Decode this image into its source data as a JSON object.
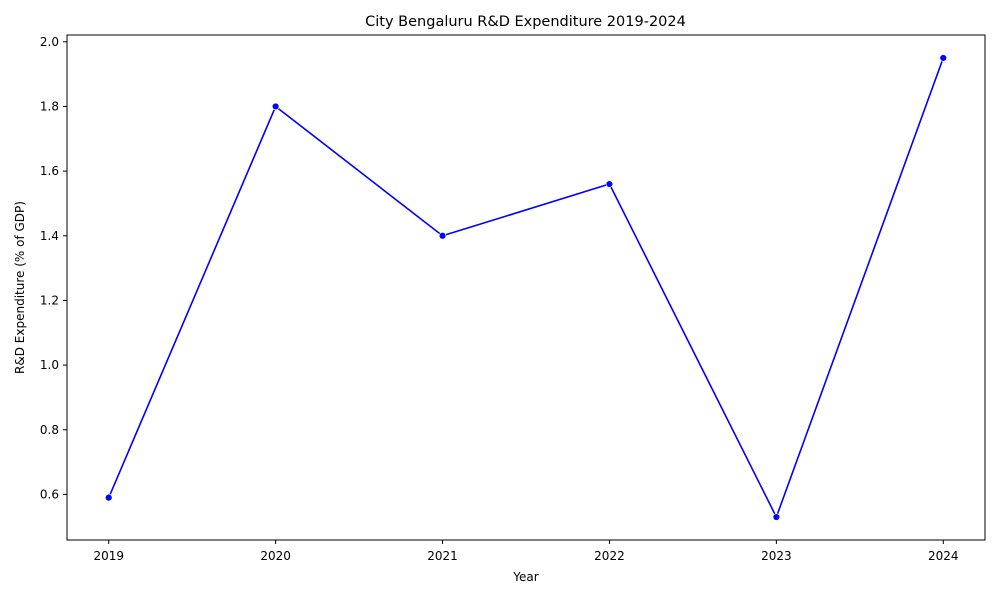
{
  "chart_data": {
    "type": "line",
    "title": "City Bengaluru R&D Expenditure 2019-2024",
    "xlabel": "Year",
    "ylabel": "R&D Expenditure (% of GDP)",
    "x": [
      2019,
      2020,
      2021,
      2022,
      2023,
      2024
    ],
    "xticks": [
      "2019",
      "2020",
      "2021",
      "2022",
      "2023",
      "2024"
    ],
    "yticks": [
      "0.6",
      "0.8",
      "1.0",
      "1.2",
      "1.4",
      "1.6",
      "1.8",
      "2.0"
    ],
    "series": [
      {
        "values": [
          0.59,
          1.8,
          1.4,
          1.56,
          0.53,
          1.95
        ],
        "color": "#0000ff",
        "marker": "circle"
      }
    ],
    "xlim": [
      2018.75,
      2024.25
    ],
    "ylim": [
      0.459,
      2.021
    ],
    "grid": false,
    "legend": false
  }
}
